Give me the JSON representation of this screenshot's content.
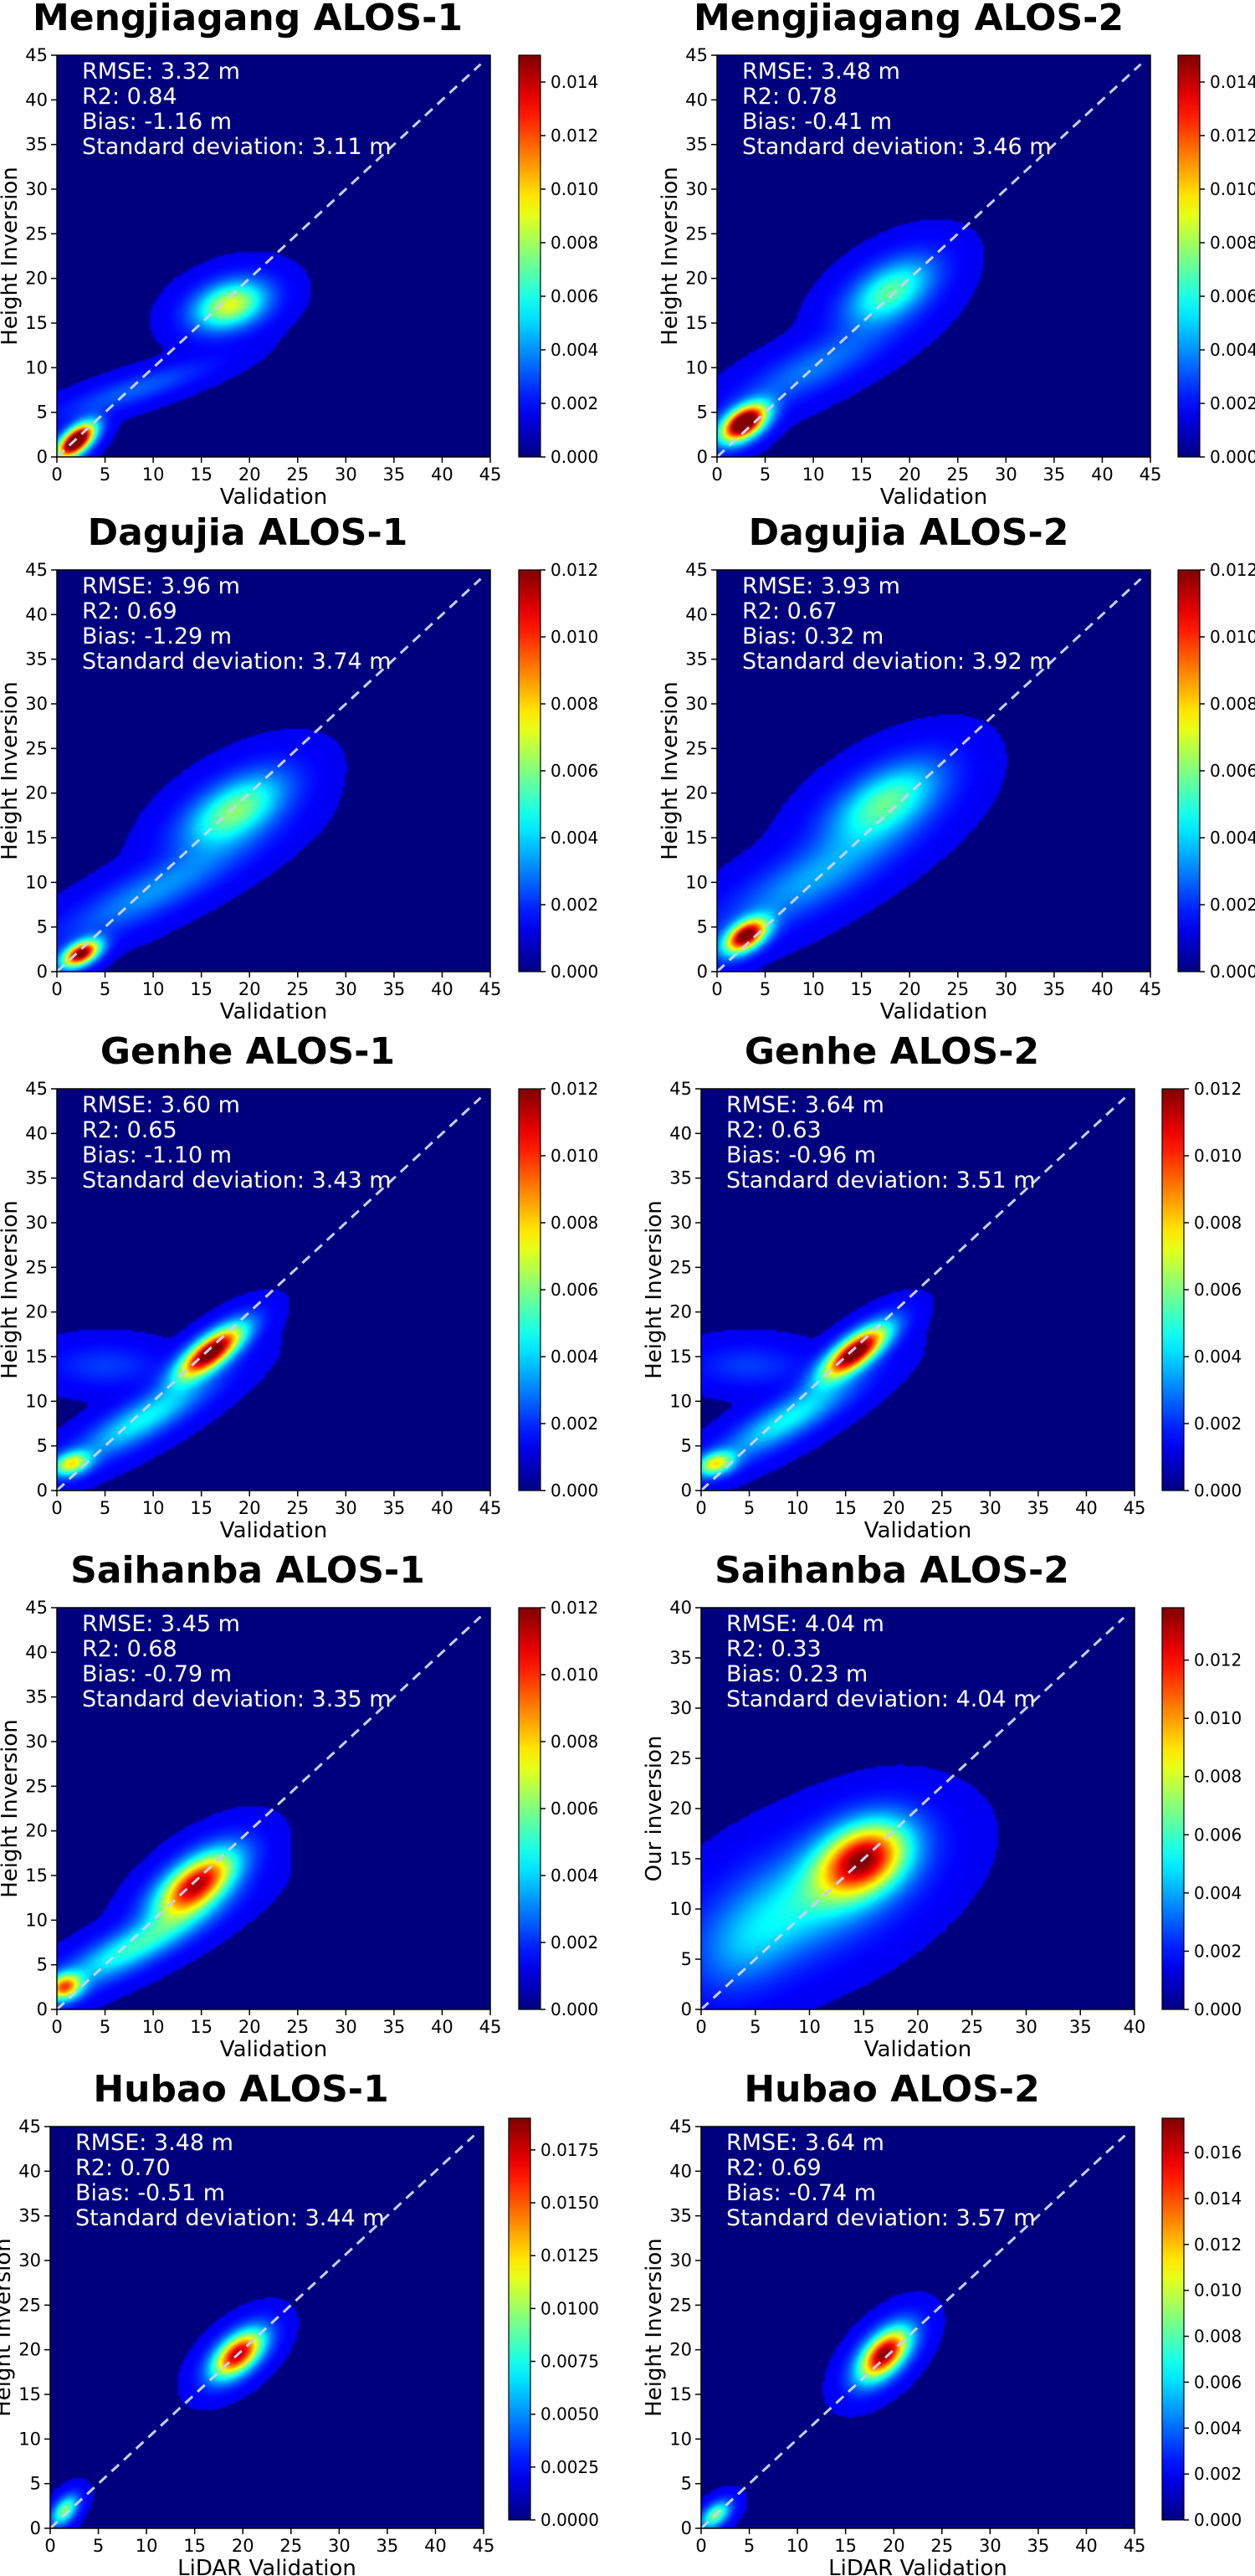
{
  "colors": {
    "background": "#00007f",
    "diagonal": "#c8d0f0",
    "stats_text": "#ffffff",
    "colormap": "jet"
  },
  "chart_data": [
    {
      "type": "heatmap",
      "title": "Mengjiagang ALOS-1",
      "xlabel": "Validation",
      "ylabel": "Height Inversion",
      "xlim": [
        0,
        45
      ],
      "ylim": [
        0,
        45
      ],
      "xticks": [
        "0",
        "5",
        "10",
        "15",
        "20",
        "25",
        "30",
        "35",
        "40",
        "45"
      ],
      "yticks": [
        "0",
        "5",
        "10",
        "15",
        "20",
        "25",
        "30",
        "35",
        "40",
        "45"
      ],
      "stats": [
        "RMSE: 3.32 m",
        "R2: 0.84",
        "Bias: -1.16 m",
        "Standard deviation: 3.11 m"
      ],
      "colorbar": {
        "range": [
          0,
          0.015
        ],
        "ticks": [
          "0.000",
          "0.002",
          "0.004",
          "0.006",
          "0.008",
          "0.010",
          "0.012",
          "0.014"
        ]
      },
      "density_peaks": [
        {
          "x": 2.0,
          "y": 1.8,
          "sx": 1.3,
          "sy": 1.3,
          "rho": 0.6,
          "level": 1.3
        },
        {
          "x": 18.0,
          "y": 17.0,
          "sx": 2.5,
          "sy": 1.8,
          "rho": 0.3,
          "level": 0.55
        },
        {
          "x": 8.0,
          "y": 7.5,
          "sx": 5.0,
          "sy": 2.0,
          "rho": 0.85,
          "level": 0.12
        }
      ]
    },
    {
      "type": "heatmap",
      "title": "Mengjiagang ALOS-2",
      "xlabel": "Validation",
      "ylabel": "Height Inversion",
      "xlim": [
        0,
        45
      ],
      "ylim": [
        0,
        45
      ],
      "xticks": [
        "0",
        "5",
        "10",
        "15",
        "20",
        "25",
        "30",
        "35",
        "40",
        "45"
      ],
      "yticks": [
        "0",
        "5",
        "10",
        "15",
        "20",
        "25",
        "30",
        "35",
        "40",
        "45"
      ],
      "stats": [
        "RMSE: 3.48 m",
        "R2: 0.78",
        "Bias: -0.41 m",
        "Standard deviation: 3.46 m"
      ],
      "colorbar": {
        "range": [
          0,
          0.015
        ],
        "ticks": [
          "0.000",
          "0.002",
          "0.004",
          "0.006",
          "0.008",
          "0.010",
          "0.012",
          "0.014"
        ]
      },
      "density_peaks": [
        {
          "x": 2.8,
          "y": 3.8,
          "sx": 1.6,
          "sy": 1.4,
          "rho": 0.5,
          "level": 1.25
        },
        {
          "x": 18.0,
          "y": 18.5,
          "sx": 3.0,
          "sy": 2.5,
          "rho": 0.5,
          "level": 0.4
        },
        {
          "x": 10.0,
          "y": 10.0,
          "sx": 5.0,
          "sy": 3.0,
          "rho": 0.8,
          "level": 0.15
        }
      ]
    },
    {
      "type": "heatmap",
      "title": "Dagujia ALOS-1",
      "xlabel": "Validation",
      "ylabel": "Height Inversion",
      "xlim": [
        0,
        45
      ],
      "ylim": [
        0,
        45
      ],
      "xticks": [
        "0",
        "5",
        "10",
        "15",
        "20",
        "25",
        "30",
        "35",
        "40",
        "45"
      ],
      "yticks": [
        "0",
        "5",
        "10",
        "15",
        "20",
        "25",
        "30",
        "35",
        "40",
        "45"
      ],
      "stats": [
        "RMSE: 3.96 m",
        "R2: 0.69",
        "Bias: -1.29 m",
        "Standard deviation: 3.74 m"
      ],
      "colorbar": {
        "range": [
          0,
          0.012
        ],
        "ticks": [
          "0.000",
          "0.002",
          "0.004",
          "0.006",
          "0.008",
          "0.010",
          "0.012"
        ]
      },
      "density_peaks": [
        {
          "x": 2.5,
          "y": 2.0,
          "sx": 1.3,
          "sy": 1.0,
          "rho": 0.5,
          "level": 1.05
        },
        {
          "x": 18.5,
          "y": 18.0,
          "sx": 3.5,
          "sy": 2.8,
          "rho": 0.55,
          "level": 0.45
        },
        {
          "x": 10.0,
          "y": 9.0,
          "sx": 6.0,
          "sy": 3.5,
          "rho": 0.85,
          "level": 0.18
        }
      ]
    },
    {
      "type": "heatmap",
      "title": "Dagujia ALOS-2",
      "xlabel": "Validation",
      "ylabel": "Height Inversion",
      "xlim": [
        0,
        45
      ],
      "ylim": [
        0,
        45
      ],
      "xticks": [
        "0",
        "5",
        "10",
        "15",
        "20",
        "25",
        "30",
        "35",
        "40",
        "45"
      ],
      "yticks": [
        "0",
        "5",
        "10",
        "15",
        "20",
        "25",
        "30",
        "35",
        "40",
        "45"
      ],
      "stats": [
        "RMSE: 3.93 m",
        "R2: 0.67",
        "Bias: 0.32 m",
        "Standard deviation: 3.92 m"
      ],
      "colorbar": {
        "range": [
          0,
          0.012
        ],
        "ticks": [
          "0.000",
          "0.002",
          "0.004",
          "0.006",
          "0.008",
          "0.010",
          "0.012"
        ]
      },
      "density_peaks": [
        {
          "x": 3.0,
          "y": 4.0,
          "sx": 1.5,
          "sy": 1.3,
          "rho": 0.5,
          "level": 1.05
        },
        {
          "x": 17.5,
          "y": 19.0,
          "sx": 3.8,
          "sy": 3.0,
          "rho": 0.55,
          "level": 0.4
        },
        {
          "x": 10.0,
          "y": 10.5,
          "sx": 6.0,
          "sy": 4.0,
          "rho": 0.8,
          "level": 0.2
        }
      ]
    },
    {
      "type": "heatmap",
      "title": "Genhe ALOS-1",
      "xlabel": "Validation",
      "ylabel": "Height Inversion",
      "xlim": [
        0,
        45
      ],
      "ylim": [
        0,
        45
      ],
      "xticks": [
        "0",
        "5",
        "10",
        "15",
        "20",
        "25",
        "30",
        "35",
        "40",
        "45"
      ],
      "yticks": [
        "0",
        "5",
        "10",
        "15",
        "20",
        "25",
        "30",
        "35",
        "40",
        "45"
      ],
      "stats": [
        "RMSE: 3.60 m",
        "R2: 0.65",
        "Bias: -1.10 m",
        "Standard deviation: 3.43 m"
      ],
      "colorbar": {
        "range": [
          0,
          0.012
        ],
        "ticks": [
          "0.000",
          "0.002",
          "0.004",
          "0.006",
          "0.008",
          "0.010",
          "0.012"
        ]
      },
      "density_peaks": [
        {
          "x": 16.0,
          "y": 15.5,
          "sx": 2.3,
          "sy": 2.0,
          "rho": 0.75,
          "level": 1.1
        },
        {
          "x": 1.5,
          "y": 3.0,
          "sx": 1.3,
          "sy": 0.9,
          "rho": 0.3,
          "level": 0.55
        },
        {
          "x": 9.0,
          "y": 8.0,
          "sx": 4.5,
          "sy": 3.0,
          "rho": 0.85,
          "level": 0.3
        },
        {
          "x": 5.0,
          "y": 14.0,
          "sx": 3.5,
          "sy": 1.5,
          "rho": 0.0,
          "level": 0.08
        }
      ]
    },
    {
      "type": "heatmap",
      "title": "Genhe ALOS-2",
      "xlabel": "Validation",
      "ylabel": "Height Inversion",
      "xlim": [
        0,
        45
      ],
      "ylim": [
        0,
        45
      ],
      "xticks": [
        "0",
        "5",
        "10",
        "15",
        "20",
        "25",
        "30",
        "35",
        "40",
        "45"
      ],
      "yticks": [
        "0",
        "5",
        "10",
        "15",
        "20",
        "25",
        "30",
        "35",
        "40",
        "45"
      ],
      "stats": [
        "RMSE: 3.64 m",
        "R2: 0.63",
        "Bias: -0.96 m",
        "Standard deviation: 3.51 m"
      ],
      "colorbar": {
        "range": [
          0,
          0.012
        ],
        "ticks": [
          "0.000",
          "0.002",
          "0.004",
          "0.006",
          "0.008",
          "0.010",
          "0.012"
        ]
      },
      "density_peaks": [
        {
          "x": 16.0,
          "y": 15.5,
          "sx": 2.3,
          "sy": 2.0,
          "rho": 0.75,
          "level": 1.1
        },
        {
          "x": 1.5,
          "y": 3.0,
          "sx": 1.3,
          "sy": 0.9,
          "rho": 0.3,
          "level": 0.55
        },
        {
          "x": 9.0,
          "y": 8.0,
          "sx": 4.5,
          "sy": 3.0,
          "rho": 0.85,
          "level": 0.3
        },
        {
          "x": 5.0,
          "y": 14.0,
          "sx": 3.5,
          "sy": 1.5,
          "rho": 0.0,
          "level": 0.08
        }
      ]
    },
    {
      "type": "heatmap",
      "title": "Saihanba ALOS-1",
      "xlabel": "Validation",
      "ylabel": "Height Inversion",
      "xlim": [
        0,
        45
      ],
      "ylim": [
        0,
        45
      ],
      "xticks": [
        "0",
        "5",
        "10",
        "15",
        "20",
        "25",
        "30",
        "35",
        "40",
        "45"
      ],
      "yticks": [
        "0",
        "5",
        "10",
        "15",
        "20",
        "25",
        "30",
        "35",
        "40",
        "45"
      ],
      "stats": [
        "RMSE: 3.45 m",
        "R2: 0.68",
        "Bias: -0.79 m",
        "Standard deviation: 3.35 m"
      ],
      "colorbar": {
        "range": [
          0,
          0.012
        ],
        "ticks": [
          "0.000",
          "0.002",
          "0.004",
          "0.006",
          "0.008",
          "0.010",
          "0.012"
        ]
      },
      "density_peaks": [
        {
          "x": 14.5,
          "y": 14.0,
          "sx": 2.8,
          "sy": 2.5,
          "rho": 0.6,
          "level": 0.95
        },
        {
          "x": 0.8,
          "y": 2.5,
          "sx": 1.2,
          "sy": 1.0,
          "rho": 0.2,
          "level": 0.7
        },
        {
          "x": 8.0,
          "y": 7.0,
          "sx": 5.0,
          "sy": 3.0,
          "rho": 0.85,
          "level": 0.35
        }
      ]
    },
    {
      "type": "heatmap",
      "title": "Saihanba ALOS-2",
      "xlabel": "Validation",
      "ylabel": "Our inversion",
      "xlim": [
        0,
        40
      ],
      "ylim": [
        0,
        40
      ],
      "xticks": [
        "0",
        "5",
        "10",
        "15",
        "20",
        "25",
        "30",
        "35",
        "40"
      ],
      "yticks": [
        "0",
        "5",
        "10",
        "15",
        "20",
        "25",
        "30",
        "35",
        "40"
      ],
      "stats": [
        "RMSE: 4.04 m",
        "R2: 0.33",
        "Bias: 0.23 m",
        "Standard deviation: 4.04 m"
      ],
      "colorbar": {
        "range": [
          0,
          0.0138
        ],
        "ticks": [
          "0.000",
          "0.002",
          "0.004",
          "0.006",
          "0.008",
          "0.010",
          "0.012"
        ]
      },
      "density_peaks": [
        {
          "x": 15.0,
          "y": 15.0,
          "sx": 2.8,
          "sy": 2.5,
          "rho": 0.3,
          "level": 0.85
        },
        {
          "x": 10.0,
          "y": 11.0,
          "sx": 5.5,
          "sy": 4.0,
          "rho": 0.5,
          "level": 0.3
        },
        {
          "x": 4.0,
          "y": 6.0,
          "sx": 3.0,
          "sy": 3.0,
          "rho": 0.3,
          "level": 0.12
        }
      ]
    },
    {
      "type": "heatmap",
      "title": "Hubao ALOS-1",
      "xlabel": "LiDAR Validation",
      "ylabel": "Height Inversion",
      "xlim": [
        0,
        45
      ],
      "ylim": [
        0,
        45
      ],
      "xticks": [
        "0",
        "5",
        "10",
        "15",
        "20",
        "25",
        "30",
        "35",
        "40",
        "45"
      ],
      "yticks": [
        "0",
        "5",
        "10",
        "15",
        "20",
        "25",
        "30",
        "35",
        "40",
        "45"
      ],
      "stats": [
        "RMSE: 3.48 m",
        "R2: 0.70",
        "Bias: -0.51 m",
        "Standard deviation: 3.44 m"
      ],
      "colorbar": {
        "range": [
          0,
          0.019
        ],
        "ticks": [
          "0.0000",
          "0.0025",
          "0.0050",
          "0.0075",
          "0.0100",
          "0.0125",
          "0.0150",
          "0.0175"
        ]
      },
      "density_peaks": [
        {
          "x": 19.5,
          "y": 19.5,
          "sx": 1.8,
          "sy": 1.8,
          "rho": 0.55,
          "level": 0.95
        },
        {
          "x": 1.5,
          "y": 2.0,
          "sx": 0.9,
          "sy": 1.1,
          "rho": 0.5,
          "level": 0.45
        }
      ]
    },
    {
      "type": "heatmap",
      "title": "Hubao ALOS-2",
      "xlabel": "LiDAR Validation",
      "ylabel": "Height Inversion",
      "xlim": [
        0,
        45
      ],
      "ylim": [
        0,
        45
      ],
      "xticks": [
        "0",
        "5",
        "10",
        "15",
        "20",
        "25",
        "30",
        "35",
        "40",
        "45"
      ],
      "yticks": [
        "0",
        "5",
        "10",
        "15",
        "20",
        "25",
        "30",
        "35",
        "40",
        "45"
      ],
      "stats": [
        "RMSE: 3.64 m",
        "R2: 0.69",
        "Bias: -0.74 m",
        "Standard deviation: 3.57 m"
      ],
      "colorbar": {
        "range": [
          0,
          0.0175
        ],
        "ticks": [
          "0.000",
          "0.002",
          "0.004",
          "0.006",
          "0.008",
          "0.010",
          "0.012",
          "0.014",
          "0.016"
        ]
      },
      "density_peaks": [
        {
          "x": 19.0,
          "y": 19.5,
          "sx": 1.8,
          "sy": 2.0,
          "rho": 0.55,
          "level": 1.0
        },
        {
          "x": 1.5,
          "y": 1.5,
          "sx": 1.0,
          "sy": 1.0,
          "rho": 0.5,
          "level": 0.45
        }
      ]
    }
  ]
}
